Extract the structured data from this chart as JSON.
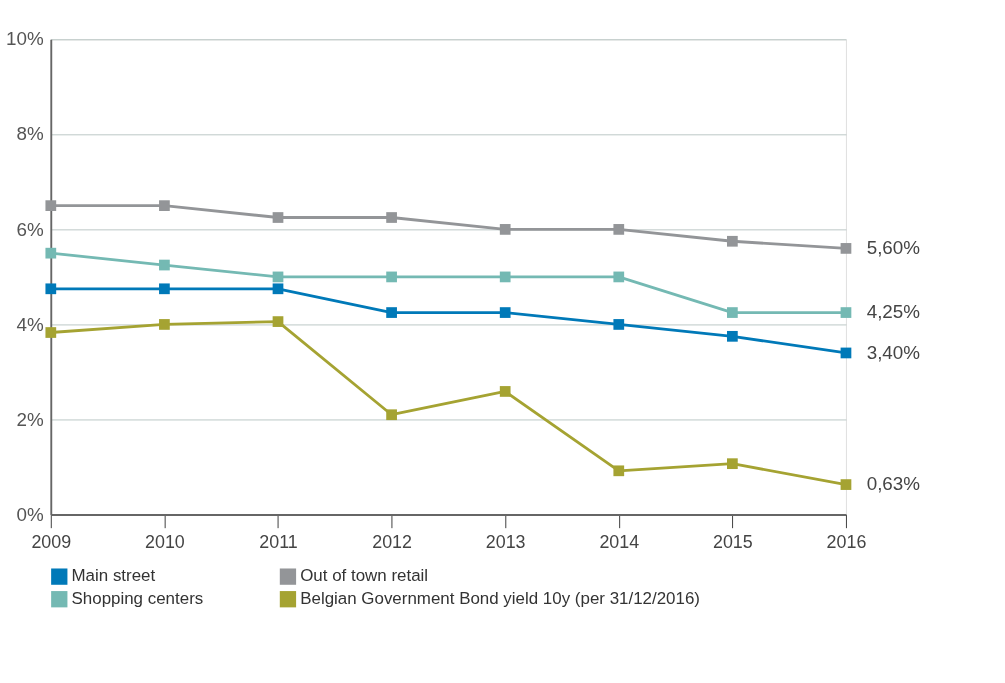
{
  "chart_data": {
    "type": "line",
    "categories": [
      "2009",
      "2010",
      "2011",
      "2012",
      "2013",
      "2014",
      "2015",
      "2016"
    ],
    "series": [
      {
        "name": "Main street",
        "color": "#0079b8",
        "values": [
          4.75,
          4.75,
          4.75,
          4.25,
          4.25,
          4.0,
          3.75,
          3.4
        ]
      },
      {
        "name": "Out of town retail",
        "color": "#939598",
        "values": [
          6.5,
          6.5,
          6.25,
          6.25,
          6.0,
          6.0,
          5.75,
          5.6
        ]
      },
      {
        "name": "Shopping centers",
        "color": "#74b9b3",
        "values": [
          5.5,
          5.25,
          5.0,
          5.0,
          5.0,
          5.0,
          4.25,
          4.25
        ]
      },
      {
        "name": "Belgian Government Bond yield 10y (per 31/12/2016)",
        "color": "#a5a332",
        "values": [
          3.83,
          4.0,
          4.06,
          2.1,
          2.59,
          0.92,
          1.07,
          0.63
        ]
      }
    ],
    "ylim": [
      0,
      10
    ],
    "yticks": [
      {
        "value": 0,
        "label": "0%"
      },
      {
        "value": 2,
        "label": "2%"
      },
      {
        "value": 4,
        "label": "4%"
      },
      {
        "value": 6,
        "label": "6%"
      },
      {
        "value": 8,
        "label": "8%"
      },
      {
        "value": 10,
        "label": "10%"
      }
    ],
    "annotations": [
      {
        "text": "5,60%",
        "x": "2016",
        "y": 5.6
      },
      {
        "text": "4,25%",
        "x": "2016",
        "y": 4.25
      },
      {
        "text": "3,40%",
        "x": "2016",
        "y": 3.4
      },
      {
        "text": "0,63%",
        "x": "2016",
        "y": 0.63
      }
    ],
    "grid": "y",
    "legend": "bottom",
    "marker": "square",
    "line_style": "solid"
  }
}
